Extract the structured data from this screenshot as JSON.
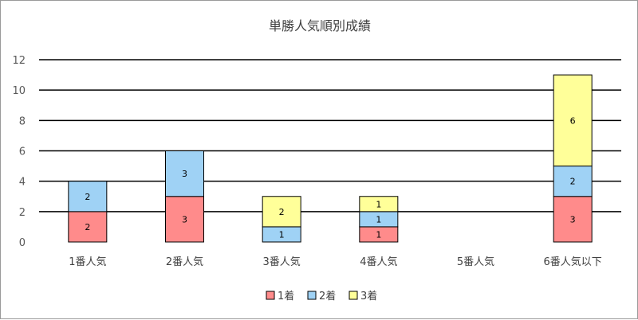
{
  "chart_data": {
    "type": "bar",
    "stacked": true,
    "title": "単勝人気順別成績",
    "categories": [
      "1番人気",
      "2番人気",
      "3番人気",
      "4番人気",
      "5番人気",
      "6番人気以下"
    ],
    "series": [
      {
        "name": "1着",
        "color": "#ff8b8b",
        "values": [
          2,
          3,
          0,
          1,
          0,
          3
        ]
      },
      {
        "name": "2着",
        "color": "#9fd2f5",
        "values": [
          2,
          3,
          1,
          1,
          0,
          2
        ]
      },
      {
        "name": "3着",
        "color": "#ffff99",
        "values": [
          0,
          0,
          2,
          1,
          0,
          6
        ]
      }
    ],
    "yticks": [
      0,
      2,
      4,
      6,
      8,
      10,
      12
    ],
    "ylim": [
      0,
      12
    ],
    "grid": true,
    "legend_position": "bottom"
  }
}
